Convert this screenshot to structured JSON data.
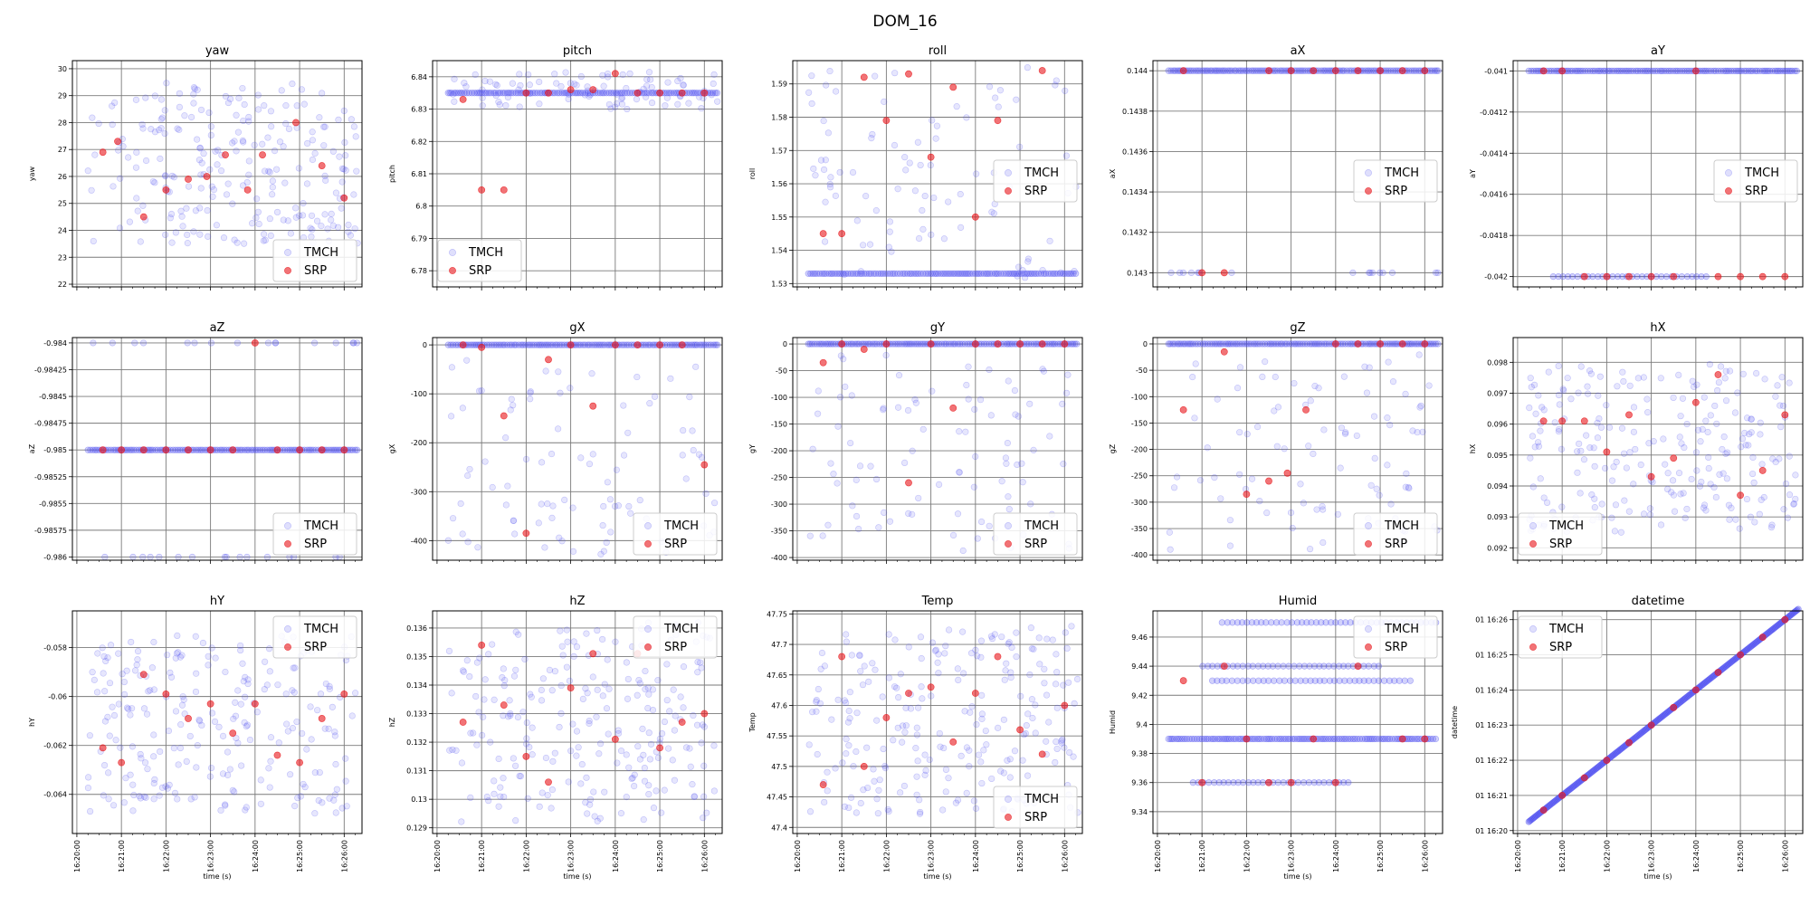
{
  "figure_title": "DOM_16",
  "xlabel": "time (s)",
  "time_ticks": [
    "16:20:00",
    "16:21:00",
    "16:22:00",
    "16:23:00",
    "16:24:00",
    "16:25:00",
    "16:26:00"
  ],
  "legend": [
    "TMCH",
    "SRP"
  ],
  "colors": {
    "tmch": "#4b4bf0",
    "srp": "#e8161b"
  },
  "chart_data": [
    {
      "type": "scatter",
      "title": "yaw",
      "ylabel": "yaw",
      "ylim": [
        21.9,
        30.3
      ],
      "yticks": [
        22,
        23,
        24,
        25,
        26,
        27,
        28,
        29,
        30
      ],
      "yband": [
        23.5,
        29.5
      ],
      "legend_loc": "lower right",
      "srp": [
        [
          "16:20:35",
          26.9
        ],
        [
          "16:20:55",
          27.3
        ],
        [
          "16:21:30",
          24.5
        ],
        [
          "16:22:00",
          25.5
        ],
        [
          "16:22:30",
          25.9
        ],
        [
          "16:22:55",
          26.0
        ],
        [
          "16:23:20",
          26.8
        ],
        [
          "16:23:50",
          25.5
        ],
        [
          "16:24:10",
          26.8
        ],
        [
          "16:24:55",
          28.0
        ],
        [
          "16:25:30",
          26.4
        ],
        [
          "16:26:00",
          25.2
        ]
      ]
    },
    {
      "type": "scatter",
      "title": "pitch",
      "ylabel": "pitch",
      "ylim": [
        6.775,
        6.845
      ],
      "yticks": [
        6.78,
        6.79,
        6.8,
        6.81,
        6.82,
        6.83,
        6.84
      ],
      "tmch_lines": [
        6.835
      ],
      "yband": [
        6.83,
        6.842
      ],
      "legend_loc": "lower left",
      "srp": [
        [
          "16:20:35",
          6.833
        ],
        [
          "16:21:00",
          6.805
        ],
        [
          "16:21:30",
          6.805
        ],
        [
          "16:22:00",
          6.835
        ],
        [
          "16:22:30",
          6.835
        ],
        [
          "16:23:00",
          6.836
        ],
        [
          "16:23:30",
          6.836
        ],
        [
          "16:24:00",
          6.841
        ],
        [
          "16:24:30",
          6.835
        ],
        [
          "16:25:00",
          6.835
        ],
        [
          "16:25:30",
          6.835
        ],
        [
          "16:26:00",
          6.835
        ]
      ]
    },
    {
      "type": "scatter",
      "title": "roll",
      "ylabel": "roll",
      "ylim": [
        1.529,
        1.597
      ],
      "yticks": [
        1.53,
        1.54,
        1.55,
        1.56,
        1.57,
        1.58,
        1.59
      ],
      "tmch_lines": [
        1.533
      ],
      "yband": [
        1.531,
        1.596
      ],
      "legend_loc": "center right",
      "srp": [
        [
          "16:20:35",
          1.545
        ],
        [
          "16:21:00",
          1.545
        ],
        [
          "16:21:30",
          1.592
        ],
        [
          "16:22:00",
          1.579
        ],
        [
          "16:22:30",
          1.593
        ],
        [
          "16:23:00",
          1.568
        ],
        [
          "16:23:30",
          1.589
        ],
        [
          "16:24:00",
          1.55
        ],
        [
          "16:24:30",
          1.579
        ],
        [
          "16:25:30",
          1.594
        ]
      ]
    },
    {
      "type": "scatter",
      "title": "aX",
      "ylabel": "aX",
      "ylim": [
        0.14293,
        0.14405
      ],
      "yticks": [
        0.143,
        0.1432,
        0.1434,
        0.1436,
        0.1438,
        0.144
      ],
      "tmch_lines": [
        0.144
      ],
      "sparse_lines": [
        0.143
      ],
      "legend_loc": "center right",
      "srp": [
        [
          "16:20:35",
          0.144
        ],
        [
          "16:21:00",
          0.143
        ],
        [
          "16:21:30",
          0.143
        ],
        [
          "16:22:30",
          0.144
        ],
        [
          "16:23:00",
          0.144
        ],
        [
          "16:23:30",
          0.144
        ],
        [
          "16:24:00",
          0.144
        ],
        [
          "16:24:30",
          0.144
        ],
        [
          "16:25:00",
          0.144
        ],
        [
          "16:25:30",
          0.144
        ],
        [
          "16:26:00",
          0.144
        ]
      ]
    },
    {
      "type": "scatter",
      "title": "aY",
      "ylabel": "aY",
      "ylim": [
        -0.04205,
        -0.04095
      ],
      "yticks": [
        -0.041,
        -0.0412,
        -0.0414,
        -0.0416,
        -0.0418,
        -0.042
      ],
      "tmch_lines": [
        -0.041,
        -0.042
      ],
      "legend_loc": "center right",
      "srp": [
        [
          "16:20:35",
          -0.041
        ],
        [
          "16:21:00",
          -0.041
        ],
        [
          "16:21:30",
          -0.042
        ],
        [
          "16:22:00",
          -0.042
        ],
        [
          "16:22:30",
          -0.042
        ],
        [
          "16:23:00",
          -0.042
        ],
        [
          "16:23:30",
          -0.042
        ],
        [
          "16:24:00",
          -0.041
        ],
        [
          "16:24:30",
          -0.042
        ],
        [
          "16:25:00",
          -0.042
        ],
        [
          "16:25:30",
          -0.042
        ],
        [
          "16:26:00",
          -0.042
        ]
      ]
    },
    {
      "type": "scatter",
      "title": "aZ",
      "ylabel": "aZ",
      "ylim": [
        -0.98603,
        -0.98395
      ],
      "yticks": [
        -0.984,
        -0.98425,
        -0.9845,
        -0.98475,
        -0.985,
        -0.98525,
        -0.9855,
        -0.98575,
        -0.986
      ],
      "tmch_lines": [
        -0.985
      ],
      "sparse_lines": [
        -0.984,
        -0.986
      ],
      "legend_loc": "lower right",
      "srp": [
        [
          "16:20:35",
          -0.985
        ],
        [
          "16:21:00",
          -0.985
        ],
        [
          "16:21:30",
          -0.985
        ],
        [
          "16:22:00",
          -0.985
        ],
        [
          "16:22:30",
          -0.985
        ],
        [
          "16:23:00",
          -0.985
        ],
        [
          "16:23:30",
          -0.985
        ],
        [
          "16:24:00",
          -0.984
        ],
        [
          "16:24:30",
          -0.985
        ],
        [
          "16:25:00",
          -0.985
        ],
        [
          "16:25:30",
          -0.985
        ],
        [
          "16:26:00",
          -0.985
        ]
      ]
    },
    {
      "type": "scatter",
      "title": "gX",
      "ylabel": "gX",
      "ylim": [
        -440,
        15
      ],
      "yticks": [
        0,
        -100,
        -200,
        -300,
        -400
      ],
      "tmch_lines": [
        0
      ],
      "yband": [
        -430,
        -20
      ],
      "legend_loc": "lower right",
      "srp": [
        [
          "16:20:35",
          0
        ],
        [
          "16:21:00",
          -5
        ],
        [
          "16:21:30",
          -145
        ],
        [
          "16:22:00",
          -385
        ],
        [
          "16:22:30",
          -30
        ],
        [
          "16:23:00",
          0
        ],
        [
          "16:23:30",
          -125
        ],
        [
          "16:24:00",
          0
        ],
        [
          "16:24:30",
          0
        ],
        [
          "16:25:00",
          0
        ],
        [
          "16:25:30",
          0
        ],
        [
          "16:26:00",
          -245
        ]
      ]
    },
    {
      "type": "scatter",
      "title": "gY",
      "ylabel": "gY",
      "ylim": [
        -405,
        12
      ],
      "yticks": [
        0,
        -50,
        -100,
        -150,
        -200,
        -250,
        -300,
        -350,
        -400
      ],
      "tmch_lines": [
        0
      ],
      "yband": [
        -390,
        -20
      ],
      "legend_loc": "lower right",
      "srp": [
        [
          "16:20:35",
          -35
        ],
        [
          "16:21:00",
          0
        ],
        [
          "16:21:30",
          -10
        ],
        [
          "16:22:00",
          0
        ],
        [
          "16:22:30",
          -260
        ],
        [
          "16:23:00",
          0
        ],
        [
          "16:23:30",
          -120
        ],
        [
          "16:24:00",
          0
        ],
        [
          "16:24:30",
          0
        ],
        [
          "16:25:00",
          0
        ],
        [
          "16:25:30",
          0
        ],
        [
          "16:26:00",
          0
        ]
      ]
    },
    {
      "type": "scatter",
      "title": "gZ",
      "ylabel": "gZ",
      "ylim": [
        -410,
        12
      ],
      "yticks": [
        0,
        -50,
        -100,
        -150,
        -200,
        -250,
        -300,
        -350,
        -400
      ],
      "tmch_lines": [
        0
      ],
      "yband": [
        -390,
        -20
      ],
      "legend_loc": "lower right",
      "srp": [
        [
          "16:20:35",
          -125
        ],
        [
          "16:21:30",
          -15
        ],
        [
          "16:22:00",
          -285
        ],
        [
          "16:22:30",
          -260
        ],
        [
          "16:22:55",
          -245
        ],
        [
          "16:23:20",
          -125
        ],
        [
          "16:24:00",
          0
        ],
        [
          "16:24:30",
          0
        ],
        [
          "16:25:00",
          0
        ],
        [
          "16:25:30",
          0
        ],
        [
          "16:26:00",
          0
        ]
      ]
    },
    {
      "type": "scatter",
      "title": "hX",
      "ylabel": "hX",
      "ylim": [
        0.0916,
        0.0988
      ],
      "yticks": [
        0.092,
        0.093,
        0.094,
        0.095,
        0.096,
        0.097,
        0.098
      ],
      "yband": [
        0.0925,
        0.098
      ],
      "legend_loc": "lower left",
      "srp": [
        [
          "16:20:35",
          0.0961
        ],
        [
          "16:21:00",
          0.0961
        ],
        [
          "16:21:30",
          0.0961
        ],
        [
          "16:22:00",
          0.0951
        ],
        [
          "16:22:30",
          0.0963
        ],
        [
          "16:23:00",
          0.0943
        ],
        [
          "16:23:30",
          0.0949
        ],
        [
          "16:24:00",
          0.0967
        ],
        [
          "16:24:30",
          0.0976
        ],
        [
          "16:25:00",
          0.0937
        ],
        [
          "16:25:30",
          0.0945
        ],
        [
          "16:26:00",
          0.0963
        ]
      ]
    },
    {
      "type": "scatter",
      "title": "hY",
      "ylabel": "hY",
      "ylim": [
        -0.0656,
        -0.0565
      ],
      "yticks": [
        -0.058,
        -0.06,
        -0.062,
        -0.064
      ],
      "yband": [
        -0.0648,
        -0.0575
      ],
      "legend_loc": "upper right",
      "srp": [
        [
          "16:20:35",
          -0.0621
        ],
        [
          "16:21:00",
          -0.0627
        ],
        [
          "16:21:30",
          -0.0591
        ],
        [
          "16:22:00",
          -0.0599
        ],
        [
          "16:22:30",
          -0.0609
        ],
        [
          "16:23:00",
          -0.0603
        ],
        [
          "16:23:30",
          -0.0615
        ],
        [
          "16:24:00",
          -0.0603
        ],
        [
          "16:24:30",
          -0.0624
        ],
        [
          "16:25:00",
          -0.0627
        ],
        [
          "16:25:30",
          -0.0609
        ],
        [
          "16:26:00",
          -0.0599
        ]
      ]
    },
    {
      "type": "scatter",
      "title": "hZ",
      "ylabel": "hZ",
      "ylim": [
        0.1288,
        0.1366
      ],
      "yticks": [
        0.129,
        0.13,
        0.131,
        0.132,
        0.133,
        0.134,
        0.135,
        0.136
      ],
      "yband": [
        0.1292,
        0.1362
      ],
      "legend_loc": "upper right",
      "srp": [
        [
          "16:20:35",
          0.1327
        ],
        [
          "16:21:00",
          0.1354
        ],
        [
          "16:21:30",
          0.1333
        ],
        [
          "16:22:00",
          0.1315
        ],
        [
          "16:22:30",
          0.1306
        ],
        [
          "16:23:00",
          0.1339
        ],
        [
          "16:23:30",
          0.1351
        ],
        [
          "16:24:00",
          0.1321
        ],
        [
          "16:24:30",
          0.1351
        ],
        [
          "16:25:00",
          0.1318
        ],
        [
          "16:25:30",
          0.1327
        ],
        [
          "16:26:00",
          0.133
        ]
      ]
    },
    {
      "type": "scatter",
      "title": "Temp",
      "ylabel": "Temp",
      "ylim": [
        47.39,
        47.755
      ],
      "yticks": [
        47.4,
        47.45,
        47.5,
        47.55,
        47.6,
        47.65,
        47.7,
        47.75
      ],
      "yband": [
        47.42,
        47.73
      ],
      "legend_loc": "lower right",
      "srp": [
        [
          "16:20:35",
          47.47
        ],
        [
          "16:21:00",
          47.68
        ],
        [
          "16:21:30",
          47.5
        ],
        [
          "16:22:00",
          47.58
        ],
        [
          "16:22:30",
          47.62
        ],
        [
          "16:23:00",
          47.63
        ],
        [
          "16:23:30",
          47.54
        ],
        [
          "16:24:00",
          47.62
        ],
        [
          "16:24:30",
          47.68
        ],
        [
          "16:25:00",
          47.56
        ],
        [
          "16:25:30",
          47.52
        ],
        [
          "16:26:00",
          47.6
        ]
      ]
    },
    {
      "type": "scatter",
      "title": "Humid",
      "ylabel": "Humid",
      "ylim": [
        9.325,
        9.478
      ],
      "yticks": [
        9.34,
        9.36,
        9.38,
        9.4,
        9.42,
        9.44,
        9.46
      ],
      "tmch_lines": [
        9.39,
        9.36,
        9.44,
        9.43,
        9.47
      ],
      "legend_loc": "upper right",
      "srp": [
        [
          "16:20:35",
          9.43
        ],
        [
          "16:21:00",
          9.36
        ],
        [
          "16:21:30",
          9.44
        ],
        [
          "16:22:00",
          9.39
        ],
        [
          "16:22:30",
          9.36
        ],
        [
          "16:23:00",
          9.36
        ],
        [
          "16:23:30",
          9.39
        ],
        [
          "16:24:00",
          9.36
        ],
        [
          "16:24:30",
          9.44
        ],
        [
          "16:25:30",
          9.39
        ],
        [
          "16:26:00",
          9.39
        ]
      ]
    },
    {
      "type": "scatter",
      "title": "datetime",
      "ylabel": "datetime",
      "ylim": [
        "01 16:19:55",
        "01 16:26:15"
      ],
      "yticks": [
        "01 16:20",
        "01 16:21",
        "01 16:22",
        "01 16:23",
        "01 16:24",
        "01 16:25",
        "01 16:26"
      ],
      "diagonal": true,
      "legend_loc": "upper left",
      "srp": [
        [
          "16:20:35",
          "01 16:20:35"
        ],
        [
          "16:21:00",
          "01 16:21:00"
        ],
        [
          "16:21:30",
          "01 16:21:30"
        ],
        [
          "16:22:00",
          "01 16:22:00"
        ],
        [
          "16:22:30",
          "01 16:22:30"
        ],
        [
          "16:23:00",
          "01 16:23:00"
        ],
        [
          "16:23:30",
          "01 16:23:30"
        ],
        [
          "16:24:00",
          "01 16:24:00"
        ],
        [
          "16:24:30",
          "01 16:24:30"
        ],
        [
          "16:25:00",
          "01 16:25:00"
        ],
        [
          "16:25:30",
          "01 16:25:30"
        ],
        [
          "16:26:00",
          "01 16:26:00"
        ]
      ]
    }
  ]
}
